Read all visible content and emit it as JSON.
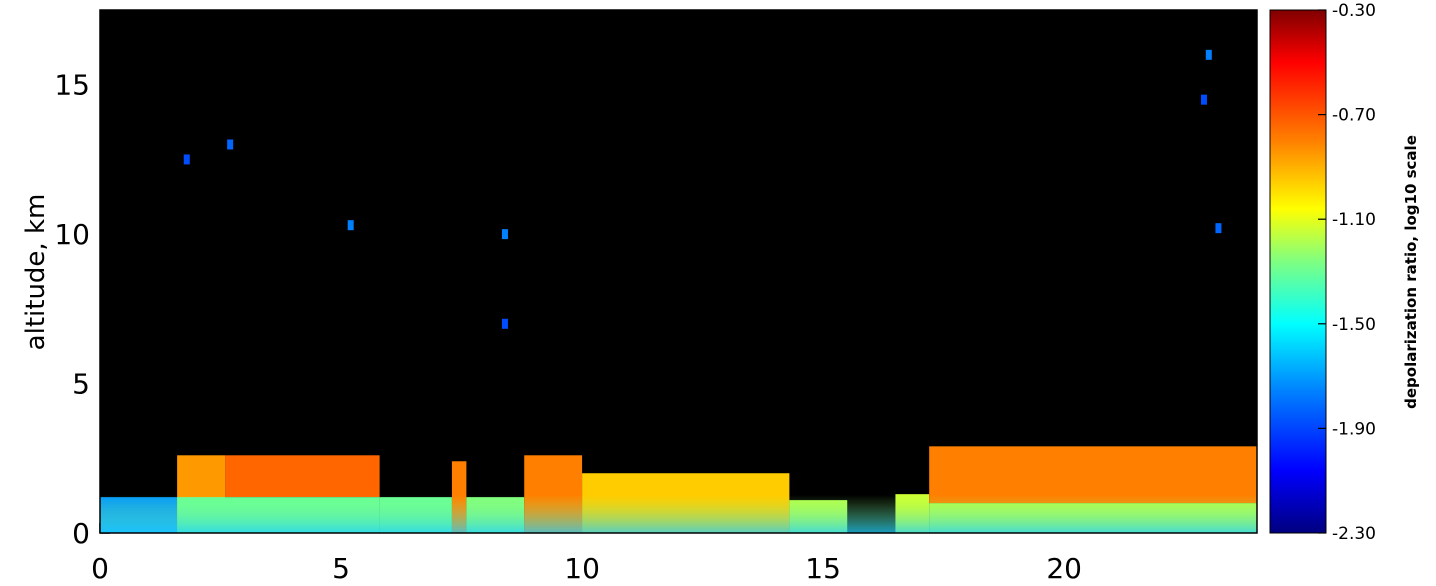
{
  "chart_data": {
    "type": "heatmap",
    "title": "",
    "xlabel": "",
    "ylabel": "altitude, km",
    "xlim": [
      0,
      24
    ],
    "ylim": [
      0,
      17.5
    ],
    "x_ticks": [
      0,
      5,
      10,
      15,
      20
    ],
    "y_ticks": [
      0,
      5,
      10,
      15
    ],
    "background_color": "#000000",
    "colorbar": {
      "label": "depolarization ratio, log10 scale",
      "range": [
        -2.3,
        -0.3
      ],
      "ticks": [
        "-0.30",
        "-0.70",
        "-1.10",
        "-1.50",
        "-1.90",
        "-2.30"
      ],
      "colormap": [
        "#000080",
        "#0000ff",
        "#0080ff",
        "#00ffff",
        "#80ff80",
        "#ffff00",
        "#ff8000",
        "#ff0000",
        "#800000"
      ]
    },
    "layers": [
      {
        "x_start": 0.0,
        "x_end": 1.6,
        "z_bottom": 0.0,
        "z_top": 1.2,
        "value": -1.75
      },
      {
        "x_start": 1.6,
        "x_end": 2.6,
        "z_bottom": 0.0,
        "z_top": 2.6,
        "value": -0.85
      },
      {
        "x_start": 2.6,
        "x_end": 5.8,
        "z_bottom": 1.2,
        "z_top": 2.6,
        "value": -0.75
      },
      {
        "x_start": 1.6,
        "x_end": 5.8,
        "z_bottom": 0.0,
        "z_top": 1.2,
        "value": -1.35
      },
      {
        "x_start": 5.8,
        "x_end": 7.3,
        "z_bottom": 0.0,
        "z_top": 1.2,
        "value": -1.35
      },
      {
        "x_start": 7.3,
        "x_end": 7.6,
        "z_bottom": 0.0,
        "z_top": 2.4,
        "value": -0.8
      },
      {
        "x_start": 7.6,
        "x_end": 8.8,
        "z_bottom": 0.0,
        "z_top": 1.2,
        "value": -1.3
      },
      {
        "x_start": 8.8,
        "x_end": 10.0,
        "z_bottom": 0.0,
        "z_top": 2.6,
        "value": -0.8
      },
      {
        "x_start": 10.0,
        "x_end": 14.3,
        "z_bottom": 0.0,
        "z_top": 2.0,
        "value": -0.95
      },
      {
        "x_start": 14.3,
        "x_end": 15.5,
        "z_bottom": 0.0,
        "z_top": 1.1,
        "value": -1.2
      },
      {
        "x_start": 16.5,
        "x_end": 17.2,
        "z_bottom": 0.0,
        "z_top": 1.3,
        "value": -1.15
      },
      {
        "x_start": 17.2,
        "x_end": 24.0,
        "z_bottom": 1.0,
        "z_top": 2.9,
        "value": -0.8
      },
      {
        "x_start": 17.2,
        "x_end": 24.0,
        "z_bottom": 0.0,
        "z_top": 1.0,
        "value": -1.2
      }
    ],
    "sparse_echoes": [
      {
        "x": 1.8,
        "z": 12.5,
        "value": -1.9
      },
      {
        "x": 2.7,
        "z": 13.0,
        "value": -1.85
      },
      {
        "x": 5.2,
        "z": 10.3,
        "value": -1.8
      },
      {
        "x": 8.4,
        "z": 10.0,
        "value": -1.8
      },
      {
        "x": 8.4,
        "z": 7.0,
        "value": -1.9
      },
      {
        "x": 23.0,
        "z": 16.0,
        "value": -1.8
      },
      {
        "x": 22.9,
        "z": 14.5,
        "value": -1.9
      },
      {
        "x": 23.2,
        "z": 10.2,
        "value": -1.85
      }
    ]
  }
}
